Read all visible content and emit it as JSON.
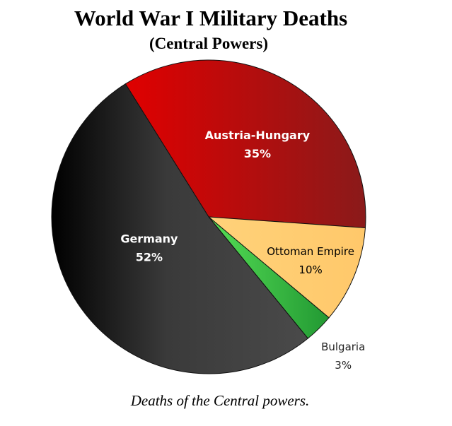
{
  "chart_data": {
    "type": "pie",
    "title": "World War I Military Deaths",
    "subtitle": "(Central Powers)",
    "caption": "Deaths of the Central powers.",
    "slices": [
      {
        "label": "Austria-Hungary",
        "percent_label": "35%",
        "value": 35,
        "color": "#c01010"
      },
      {
        "label": "Ottoman Empire",
        "percent_label": "10%",
        "value": 10,
        "color": "#ffcc73"
      },
      {
        "label": "Bulgaria",
        "percent_label": "3%",
        "value": 3,
        "color": "#33bb44"
      },
      {
        "label": "Germany",
        "percent_label": "52%",
        "value": 52,
        "color": "#333333"
      }
    ]
  }
}
